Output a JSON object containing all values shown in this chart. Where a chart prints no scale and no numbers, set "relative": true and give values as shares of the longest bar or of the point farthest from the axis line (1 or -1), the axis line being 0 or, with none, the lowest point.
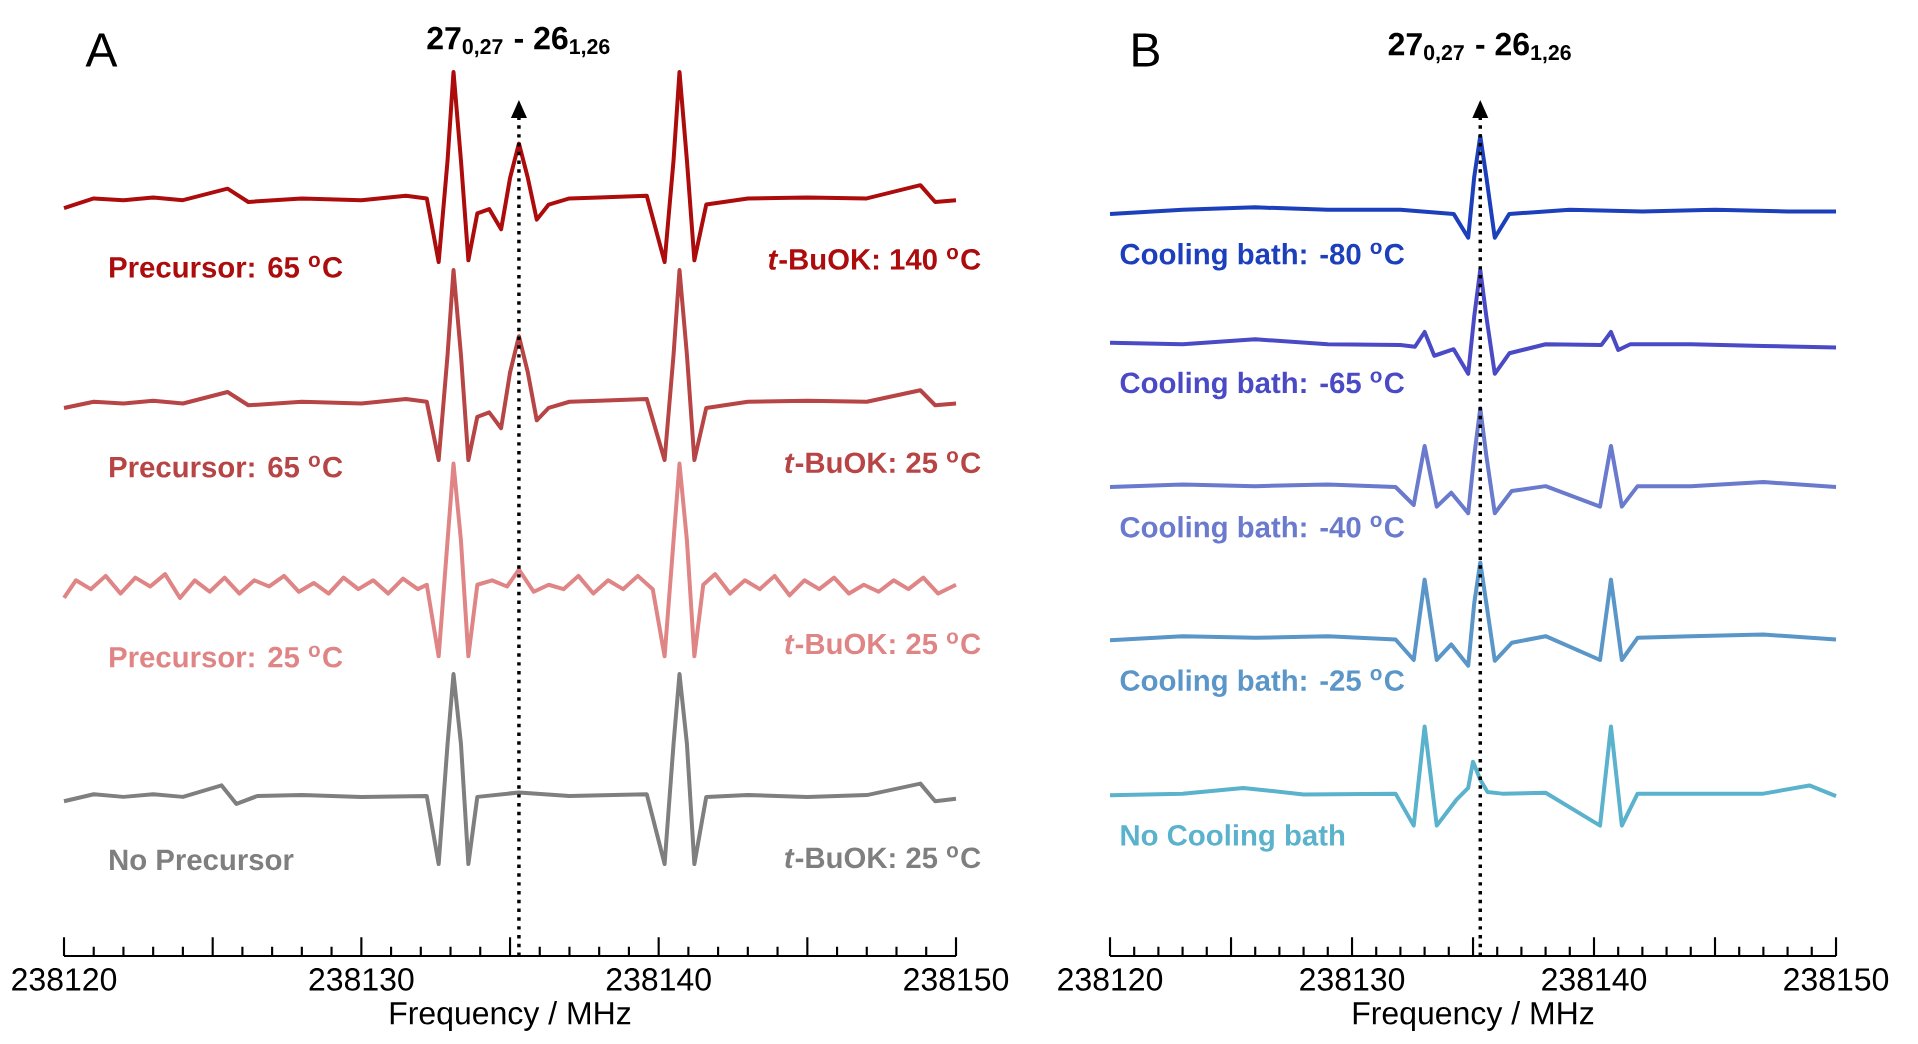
{
  "chart_data": [
    {
      "type": "line",
      "title": "A",
      "xlabel": "Frequency / MHz",
      "relative": true,
      "xlim": [
        238120,
        238150
      ],
      "xticks": [
        238120,
        {
          "value": 238125,
          "label": null
        },
        238130,
        {
          "value": 238135,
          "label": null
        },
        238140,
        {
          "value": 238145,
          "label": null
        },
        238150
      ],
      "ref_lines": [
        {
          "axis": "x",
          "value": 238135.3,
          "line_style": "dotted"
        }
      ],
      "annotations": [
        "27$_{0,27}$ - 26$_{1,26}$",
        "*t*-BuOK: 140 $^{o}$C",
        "*t*-BuOK: 25 $^{o}$C",
        "*t*-BuOK: 25 $^{o}$C",
        "*t*-BuOK:  25 $^{o}$C"
      ],
      "series": [
        {
          "name": "Precursor: 65 $^{o}$C",
          "color": "#ad0c0c",
          "x": [
            238120,
            238121,
            238122,
            238123,
            238124,
            238125.5,
            238126.2,
            238128,
            238130,
            238131.5,
            238132.2,
            238132.6,
            238132.9,
            238133.1,
            238133.35,
            238133.6,
            238133.9,
            238134.3,
            238134.7,
            238135.0,
            238135.3,
            238135.6,
            238135.9,
            238136.3,
            238137,
            238138,
            238139.6,
            238140.2,
            238140.5,
            238140.7,
            238140.95,
            238141.2,
            238141.6,
            238143,
            238145,
            238147,
            238148.8,
            238149.3,
            238150
          ],
          "values": [
            0.846,
            0.857,
            0.855,
            0.858,
            0.855,
            0.868,
            0.853,
            0.857,
            0.855,
            0.86,
            0.857,
            0.785,
            0.9,
            1.0,
            0.9,
            0.787,
            0.84,
            0.845,
            0.822,
            0.88,
            0.919,
            0.88,
            0.833,
            0.85,
            0.857,
            0.858,
            0.86,
            0.785,
            0.9,
            1.0,
            0.9,
            0.787,
            0.85,
            0.857,
            0.858,
            0.857,
            0.872,
            0.853,
            0.855
          ]
        },
        {
          "name": "Precursor: 65 $^{o}$C",
          "color": "#b84545",
          "x": [
            238120,
            238121,
            238122,
            238123,
            238124,
            238125.5,
            238126.2,
            238128,
            238130,
            238131.5,
            238132.2,
            238132.6,
            238132.9,
            238133.1,
            238133.35,
            238133.6,
            238133.9,
            238134.3,
            238134.7,
            238135.0,
            238135.3,
            238135.6,
            238135.9,
            238136.3,
            238137,
            238138,
            238139.6,
            238140.2,
            238140.5,
            238140.7,
            238140.95,
            238141.2,
            238141.6,
            238143,
            238145,
            238147,
            238148.8,
            238149.3,
            238150
          ],
          "values": [
            0.62,
            0.627,
            0.625,
            0.628,
            0.625,
            0.638,
            0.623,
            0.627,
            0.625,
            0.63,
            0.627,
            0.561,
            0.68,
            0.776,
            0.68,
            0.561,
            0.61,
            0.615,
            0.597,
            0.66,
            0.701,
            0.66,
            0.606,
            0.62,
            0.627,
            0.628,
            0.63,
            0.561,
            0.68,
            0.776,
            0.68,
            0.561,
            0.62,
            0.627,
            0.628,
            0.627,
            0.64,
            0.623,
            0.625
          ]
        },
        {
          "name": "Precursor: 25 $^{o}$C",
          "color": "#e08585",
          "x": [
            238120,
            238120.4,
            238120.9,
            238121.4,
            238121.9,
            238122.4,
            238122.9,
            238123.4,
            238123.9,
            238124.4,
            238124.9,
            238125.4,
            238125.9,
            238126.4,
            238126.9,
            238127.4,
            238127.9,
            238128.4,
            238128.9,
            238129.4,
            238129.9,
            238130.4,
            238130.9,
            238131.4,
            238131.9,
            238132.2,
            238132.6,
            238132.9,
            238133.1,
            238133.35,
            238133.6,
            238133.9,
            238134.4,
            238134.9,
            238135.3,
            238135.8,
            238136.3,
            238136.8,
            238137.3,
            238137.8,
            238138.3,
            238138.8,
            238139.3,
            238139.8,
            238140.2,
            238140.5,
            238140.7,
            238140.95,
            238141.2,
            238141.5,
            238141.9,
            238142.4,
            238142.9,
            238143.4,
            238143.9,
            238144.4,
            238144.9,
            238145.4,
            238145.9,
            238146.4,
            238146.9,
            238147.4,
            238147.9,
            238148.4,
            238148.9,
            238149.4,
            238150
          ],
          "values": [
            0.405,
            0.425,
            0.415,
            0.43,
            0.41,
            0.428,
            0.418,
            0.432,
            0.405,
            0.425,
            0.412,
            0.428,
            0.41,
            0.425,
            0.418,
            0.43,
            0.412,
            0.422,
            0.41,
            0.428,
            0.415,
            0.425,
            0.41,
            0.427,
            0.415,
            0.42,
            0.339,
            0.47,
            0.557,
            0.47,
            0.339,
            0.42,
            0.425,
            0.418,
            0.437,
            0.412,
            0.42,
            0.415,
            0.43,
            0.41,
            0.425,
            0.415,
            0.43,
            0.415,
            0.339,
            0.47,
            0.557,
            0.47,
            0.339,
            0.42,
            0.432,
            0.41,
            0.425,
            0.415,
            0.43,
            0.408,
            0.425,
            0.415,
            0.428,
            0.41,
            0.42,
            0.412,
            0.425,
            0.415,
            0.428,
            0.41,
            0.42
          ]
        },
        {
          "name": "No Precursor",
          "color": "#7f7f7f",
          "x": [
            238120,
            238121,
            238122,
            238123,
            238124,
            238125.3,
            238125.8,
            238126.5,
            238128,
            238130,
            238132.2,
            238132.6,
            238132.9,
            238133.1,
            238133.35,
            238133.6,
            238133.9,
            238135.3,
            238137,
            238139.6,
            238140.2,
            238140.5,
            238140.7,
            238140.95,
            238141.2,
            238141.6,
            238143,
            238145,
            238147,
            238148.8,
            238149.3,
            238150
          ],
          "values": [
            0.175,
            0.183,
            0.18,
            0.183,
            0.18,
            0.193,
            0.172,
            0.181,
            0.182,
            0.18,
            0.181,
            0.104,
            0.24,
            0.319,
            0.24,
            0.104,
            0.18,
            0.185,
            0.181,
            0.183,
            0.104,
            0.24,
            0.319,
            0.24,
            0.104,
            0.18,
            0.182,
            0.18,
            0.182,
            0.195,
            0.175,
            0.178
          ]
        }
      ]
    },
    {
      "type": "line",
      "title": "B",
      "xlabel": "Frequency / MHz",
      "relative": true,
      "xlim": [
        238120,
        238150
      ],
      "xticks": [
        238120,
        {
          "value": 238125,
          "label": null
        },
        238130,
        {
          "value": 238135,
          "label": null
        },
        238140,
        {
          "value": 238145,
          "label": null
        },
        238150
      ],
      "ref_lines": [
        {
          "axis": "x",
          "value": 238135.3,
          "line_style": "dotted"
        }
      ],
      "annotations": [
        "27$_{0,27}$ - 26$_{1,26}$"
      ],
      "series": [
        {
          "name": "Cooling bath: -80 $^{o}$C",
          "color": "#1c3fbc",
          "x": [
            238120,
            238123,
            238126,
            238129,
            238132,
            238134.2,
            238134.8,
            238135.05,
            238135.3,
            238135.55,
            238135.9,
            238136.5,
            238139,
            238142,
            238145,
            238148,
            238150
          ],
          "values": [
            0.905,
            0.91,
            0.913,
            0.91,
            0.91,
            0.905,
            0.876,
            0.95,
            1.0,
            0.95,
            0.876,
            0.905,
            0.91,
            0.908,
            0.91,
            0.908,
            0.908
          ]
        },
        {
          "name": "Cooling bath: -65 $^{o}$C",
          "color": "#4a4ac6",
          "x": [
            238120,
            238123,
            238126,
            238129,
            238132,
            238132.6,
            238133.0,
            238133.4,
            238134.2,
            238134.8,
            238135.05,
            238135.3,
            238135.55,
            238135.9,
            238136.5,
            238138,
            238140.3,
            238140.7,
            238141.0,
            238141.5,
            238144,
            238147,
            238150
          ],
          "values": [
            0.748,
            0.746,
            0.752,
            0.746,
            0.745,
            0.743,
            0.761,
            0.732,
            0.74,
            0.71,
            0.78,
            0.837,
            0.78,
            0.71,
            0.735,
            0.746,
            0.745,
            0.761,
            0.739,
            0.746,
            0.746,
            0.744,
            0.742
          ]
        },
        {
          "name": "Cooling bath: -40 $^{o}$C",
          "color": "#6a7acd",
          "x": [
            238120,
            238123,
            238126,
            238129,
            238131.8,
            238132.55,
            238133.0,
            238133.5,
            238134.1,
            238134.8,
            238135.05,
            238135.3,
            238135.55,
            238135.9,
            238136.6,
            238138,
            238140.25,
            238140.7,
            238141.15,
            238141.8,
            238144,
            238147,
            238150
          ],
          "values": [
            0.572,
            0.575,
            0.573,
            0.575,
            0.572,
            0.55,
            0.622,
            0.548,
            0.565,
            0.54,
            0.61,
            0.668,
            0.61,
            0.54,
            0.567,
            0.573,
            0.548,
            0.622,
            0.548,
            0.573,
            0.573,
            0.578,
            0.572
          ]
        },
        {
          "name": "Cooling bath: -25 $^{o}$C",
          "color": "#5b96c8",
          "x": [
            238120,
            238123,
            238126,
            238129,
            238131.8,
            238132.55,
            238133.0,
            238133.5,
            238134.1,
            238134.8,
            238135.05,
            238135.3,
            238135.55,
            238135.9,
            238136.6,
            238138,
            238140.25,
            238140.7,
            238141.15,
            238141.8,
            238144,
            238147,
            238150
          ],
          "values": [
            0.385,
            0.39,
            0.388,
            0.39,
            0.386,
            0.361,
            0.459,
            0.361,
            0.38,
            0.354,
            0.43,
            0.48,
            0.43,
            0.36,
            0.382,
            0.39,
            0.361,
            0.459,
            0.361,
            0.388,
            0.39,
            0.392,
            0.386
          ]
        },
        {
          "name": "No Cooling bath",
          "color": "#5ab2cc",
          "x": [
            238120,
            238123,
            238125.5,
            238128,
            238131.8,
            238132.55,
            238133.0,
            238133.5,
            238134.3,
            238134.8,
            238135.0,
            238135.3,
            238135.6,
            238136.2,
            238138,
            238140.25,
            238140.7,
            238141.15,
            238141.8,
            238144,
            238147,
            238148.9,
            238150
          ],
          "values": [
            0.196,
            0.198,
            0.205,
            0.197,
            0.198,
            0.159,
            0.28,
            0.159,
            0.19,
            0.205,
            0.237,
            0.215,
            0.2,
            0.198,
            0.199,
            0.159,
            0.28,
            0.159,
            0.198,
            0.198,
            0.198,
            0.208,
            0.195
          ]
        }
      ]
    }
  ]
}
